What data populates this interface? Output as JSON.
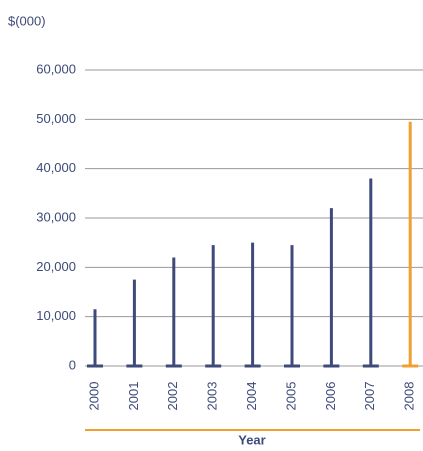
{
  "chart_data": {
    "type": "bar",
    "y_label": "$(000)",
    "x_label": "Year",
    "categories": [
      "2000",
      "2001",
      "2002",
      "2003",
      "2004",
      "2005",
      "2006",
      "2007",
      "2008"
    ],
    "values": [
      11500,
      17500,
      22000,
      24500,
      25000,
      24500,
      32000,
      38000,
      49500
    ],
    "colors": [
      "#3d4a7a",
      "#3d4a7a",
      "#3d4a7a",
      "#3d4a7a",
      "#3d4a7a",
      "#3d4a7a",
      "#3d4a7a",
      "#3d4a7a",
      "#f0a030"
    ],
    "ylim": [
      0,
      60000
    ],
    "yticks": [
      0,
      {
        "value": 10000,
        "label": "10,000"
      },
      {
        "value": 20000,
        "label": "20,000"
      },
      {
        "value": 30000,
        "label": "30,000"
      },
      {
        "value": 40000,
        "label": "40,000"
      },
      {
        "value": 50000,
        "label": "50,000"
      },
      {
        "value": 60000,
        "label": "60,000"
      }
    ],
    "grid": true
  }
}
